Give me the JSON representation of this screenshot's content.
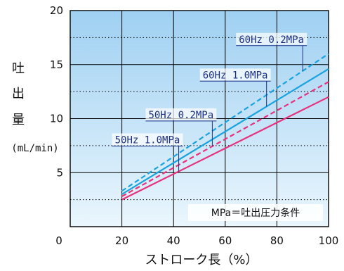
{
  "chart_data": {
    "type": "line",
    "title": "",
    "xlabel": "ストローク長（%）",
    "ylabel_chars": [
      "吐",
      "出",
      "量"
    ],
    "ylabel_unit": "(mL/min)",
    "xlim": [
      0,
      100
    ],
    "ylim": [
      0,
      20
    ],
    "x_ticks": [
      "0",
      "20",
      "40",
      "60",
      "80",
      "100"
    ],
    "y_ticks": [
      "5",
      "10",
      "15",
      "20"
    ],
    "grid": {
      "major_solid_y": [
        5,
        10,
        15,
        20
      ],
      "minor_dotted_y": [
        2.5,
        7.5,
        12.5,
        17.5
      ],
      "vertical_x": [
        20,
        40,
        60,
        80,
        100
      ]
    },
    "colors": {
      "cyan": "#1aa3e0",
      "magenta": "#e6327f",
      "callout": "#1c2f86",
      "band_top": "#9fd0f2",
      "band_bottom": "#eaf6fd"
    },
    "series": [
      {
        "name": "60Hz 0.2MPa",
        "color": "#1aa3e0",
        "dash": true,
        "points": [
          [
            20,
            3.3
          ],
          [
            100,
            16.0
          ]
        ]
      },
      {
        "name": "60Hz 1.0MPa",
        "color": "#1aa3e0",
        "dash": false,
        "points": [
          [
            20,
            3.0
          ],
          [
            100,
            14.6
          ]
        ]
      },
      {
        "name": "50Hz 0.2MPa",
        "color": "#e6327f",
        "dash": true,
        "points": [
          [
            20,
            2.8
          ],
          [
            100,
            13.4
          ]
        ]
      },
      {
        "name": "50Hz 1.0MPa",
        "color": "#e6327f",
        "dash": false,
        "points": [
          [
            20,
            2.5
          ],
          [
            100,
            12.0
          ]
        ]
      }
    ],
    "callouts": [
      {
        "text": "60Hz 0.2MPa",
        "series": 0,
        "x": 90
      },
      {
        "text": "60Hz 1.0MPa",
        "series": 1,
        "x": 76
      },
      {
        "text": "50Hz 0.2MPa",
        "series": 2,
        "x": 55
      },
      {
        "text": "50Hz 1.0MPa",
        "series": 3,
        "x": 42
      }
    ],
    "note": "MPa＝吐出圧力条件"
  }
}
